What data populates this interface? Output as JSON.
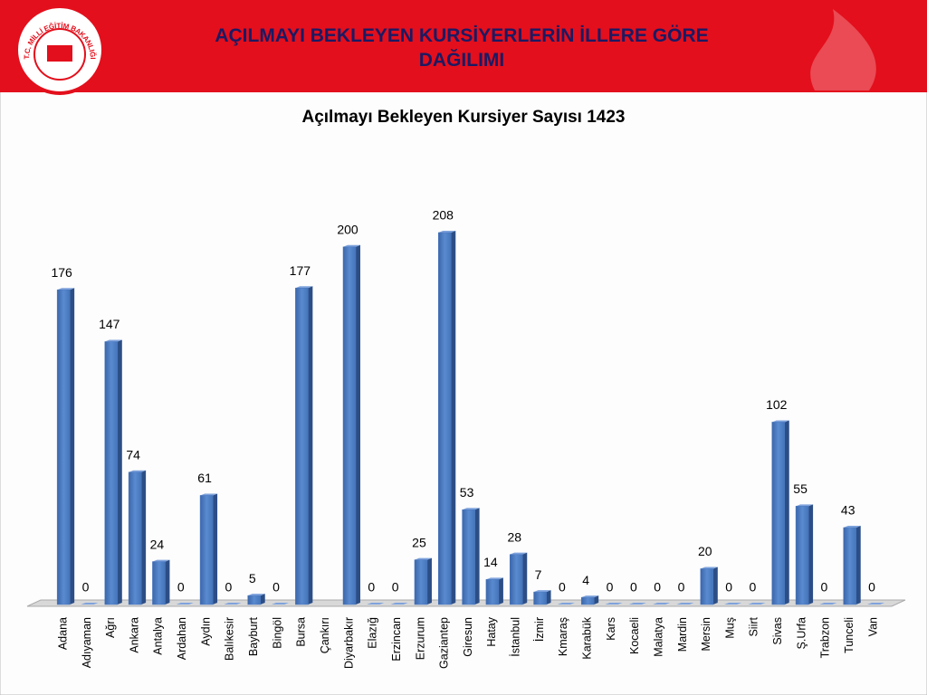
{
  "header": {
    "title": "AÇILMAYI BEKLEYEN KURSİYERLERİN İLLERE GÖRE DAĞILIMI",
    "logo_text": "T.C. MİLLİ EĞİTİM BAKANLIĞI"
  },
  "chart_data": {
    "type": "bar",
    "title": "Açılmayı Bekleyen Kursiyer Sayısı 1423",
    "categories": [
      "Adana",
      "Adıyaman",
      "Ağrı",
      "Ankara",
      "Antalya",
      "Ardahan",
      "Aydın",
      "Balıkesir",
      "Bayburt",
      "Bingöl",
      "Bursa",
      "Çankırı",
      "Diyarbakır",
      "Elazığ",
      "Erzincan",
      "Erzurum",
      "Gaziantep",
      "Giresun",
      "Hatay",
      "İstanbul",
      "İzmir",
      "Kmaraş",
      "Karabük",
      "Kars",
      "Kocaeli",
      "Malatya",
      "Mardin",
      "Mersin",
      "Muş",
      "Siirt",
      "Sivas",
      "Ş.Urfa",
      "Trabzon",
      "Tunceli",
      "Van"
    ],
    "values": [
      176,
      0,
      147,
      74,
      24,
      0,
      61,
      0,
      5,
      0,
      177,
      null,
      200,
      0,
      0,
      25,
      208,
      53,
      14,
      28,
      7,
      0,
      4,
      0,
      0,
      0,
      0,
      20,
      0,
      0,
      102,
      55,
      0,
      43,
      0
    ],
    "color": "#4a78c0"
  }
}
